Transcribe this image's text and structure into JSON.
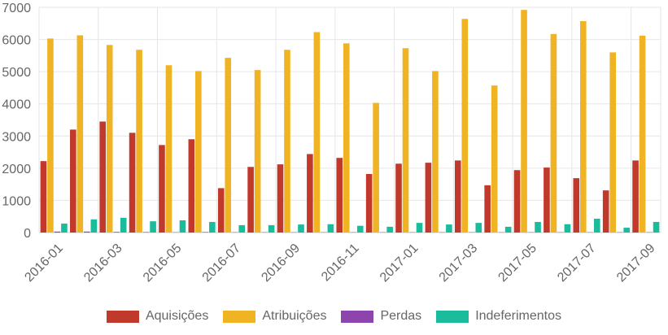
{
  "chart_data": {
    "type": "bar",
    "title": "",
    "xlabel": "",
    "ylabel": "",
    "ylim": [
      0,
      7000
    ],
    "y_ticks": [
      0,
      1000,
      2000,
      3000,
      4000,
      5000,
      6000,
      7000
    ],
    "grid": true,
    "legend_position": "bottom",
    "categories": [
      "2016-01",
      "2016-02",
      "2016-03",
      "2016-04",
      "2016-05",
      "2016-06",
      "2016-07",
      "2016-08",
      "2016-09",
      "2016-10",
      "2016-11",
      "2016-12",
      "2017-01",
      "2017-02",
      "2017-03",
      "2017-04",
      "2017-05",
      "2017-06",
      "2017-07",
      "2017-08",
      "2017-09"
    ],
    "x_tick_labels": [
      "2016-01",
      "",
      "2016-03",
      "",
      "2016-05",
      "",
      "2016-07",
      "",
      "2016-09",
      "",
      "2016-11",
      "",
      "2017-01",
      "",
      "2017-03",
      "",
      "2017-05",
      "",
      "2017-07",
      "",
      "2017-09"
    ],
    "series": [
      {
        "name": "Aquisições",
        "color": "#c0392b",
        "values": [
          2220,
          3200,
          3450,
          3100,
          2720,
          2900,
          1380,
          2040,
          2120,
          2440,
          2320,
          1820,
          2140,
          2170,
          2240,
          1470,
          1940,
          2020,
          1690,
          1310,
          2240
        ]
      },
      {
        "name": "Atribuições",
        "color": "#f0b323",
        "values": [
          6030,
          6130,
          5830,
          5680,
          5200,
          5020,
          5430,
          5050,
          5680,
          6230,
          5880,
          4030,
          5730,
          5020,
          6640,
          4570,
          6920,
          6170,
          6570,
          5600,
          6120
        ]
      },
      {
        "name": "Perdas",
        "color": "#8e44ad",
        "values": [
          30,
          30,
          20,
          15,
          10,
          15,
          10,
          10,
          10,
          10,
          10,
          10,
          10,
          10,
          10,
          10,
          10,
          10,
          10,
          10,
          10
        ]
      },
      {
        "name": "Indeferimentos",
        "color": "#1abc9c",
        "values": [
          280,
          410,
          460,
          350,
          380,
          330,
          230,
          230,
          250,
          260,
          210,
          180,
          300,
          250,
          300,
          180,
          330,
          260,
          430,
          150,
          330
        ]
      }
    ]
  }
}
